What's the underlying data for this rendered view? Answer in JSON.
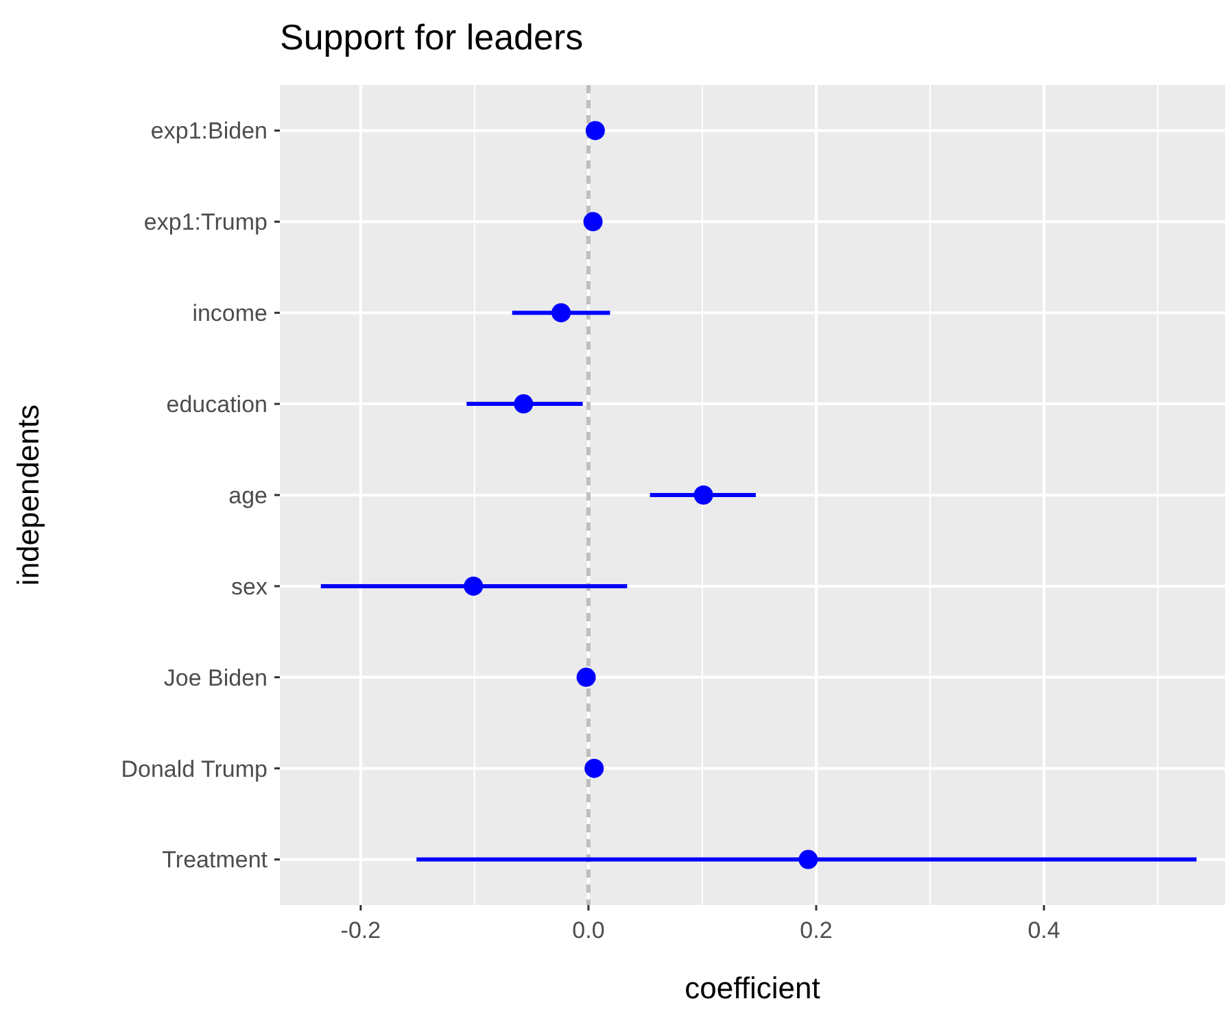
{
  "chart_data": {
    "type": "scatter",
    "title": "Support for leaders",
    "xlabel": "coefficient",
    "ylabel": "independents",
    "orientation": "horizontal",
    "categories": [
      "exp1:Biden",
      "exp1:Trump",
      "income",
      "education",
      "age",
      "sex",
      "Joe Biden",
      "Donald Trump",
      "Treatment"
    ],
    "values": [
      0.006,
      0.004,
      -0.024,
      -0.057,
      0.101,
      -0.101,
      -0.002,
      0.005,
      0.193
    ],
    "errors": [
      null,
      null,
      [
        -0.067,
        0.019
      ],
      [
        -0.107,
        -0.005
      ],
      [
        0.054,
        0.147
      ],
      [
        -0.235,
        0.034
      ],
      null,
      null,
      [
        -0.151,
        0.534
      ]
    ],
    "color": "#0000ff",
    "marker": "circle",
    "grid": true,
    "xlim": [
      -0.271,
      0.559
    ],
    "xticks": [
      -0.2,
      {
        "value": 0,
        "label": "0.0"
      },
      0.2,
      0.4
    ],
    "ref_lines": [
      {
        "axis": "x",
        "value": 0,
        "color": "#bebebe",
        "line_style": "dashed"
      }
    ]
  }
}
